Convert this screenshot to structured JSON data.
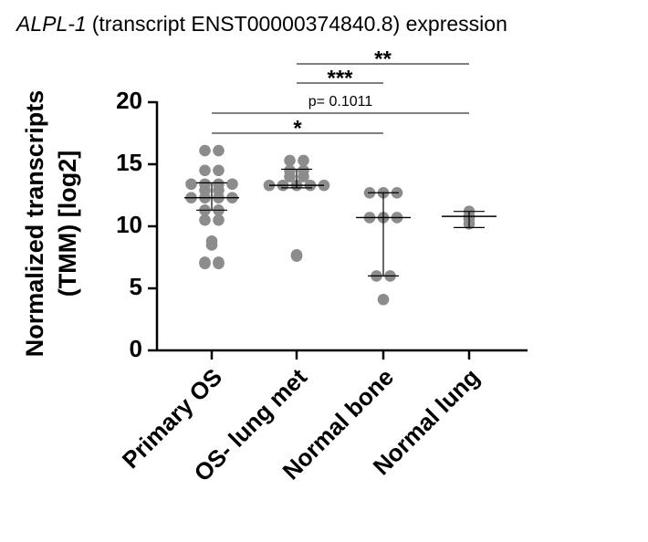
{
  "chart_data": {
    "type": "dot",
    "title_italic": "ALPL-1",
    "title": "(transcript ENST00000374840.8) expression",
    "y_label": [
      "Normalized transcripts",
      "(TMM) [log2]"
    ],
    "categories": [
      "Primary OS",
      "OS- lung met",
      "Normal bone",
      "Normal lung"
    ],
    "color": "#8c8c8c",
    "groups": [
      {
        "values": [
          16.1,
          16.1,
          14.5,
          14.5,
          13.4,
          13.4,
          13.4,
          13.4,
          12.9,
          12.9,
          12.3,
          12.3,
          12.3,
          12.3,
          11.3,
          11.3,
          10.5,
          10.5,
          8.8,
          8.5,
          7.1,
          7.1,
          7.0,
          7.0
        ],
        "median": 12.3,
        "q1": 11.3,
        "q3": 13.5
      },
      {
        "values": [
          15.3,
          15.3,
          14.5,
          14.5,
          14.0,
          14.0,
          13.3,
          13.3,
          13.3,
          13.3,
          13.3,
          7.7,
          7.6
        ],
        "median": 13.3,
        "q1": 13.1,
        "q3": 14.6
      },
      {
        "values": [
          12.7,
          12.7,
          12.7,
          10.7,
          10.7,
          10.7,
          6.0,
          6.0,
          4.1
        ],
        "median": 10.7,
        "q1": 6.0,
        "q3": 12.7
      },
      {
        "values": [
          10.6,
          10.8,
          11.2,
          10.2
        ],
        "median": 10.8,
        "q1": 9.9,
        "q3": 11.2
      }
    ],
    "comparisons": [
      {
        "from": 1,
        "to": 3,
        "label": "**"
      },
      {
        "from": 1,
        "to": 2,
        "label": "***"
      },
      {
        "from": 0,
        "to": 3,
        "label": "p= 0.1011"
      },
      {
        "from": 0,
        "to": 2,
        "label": "*"
      }
    ],
    "ylim": [
      0,
      20
    ],
    "yticks": [
      0,
      5,
      10,
      15,
      20
    ]
  }
}
